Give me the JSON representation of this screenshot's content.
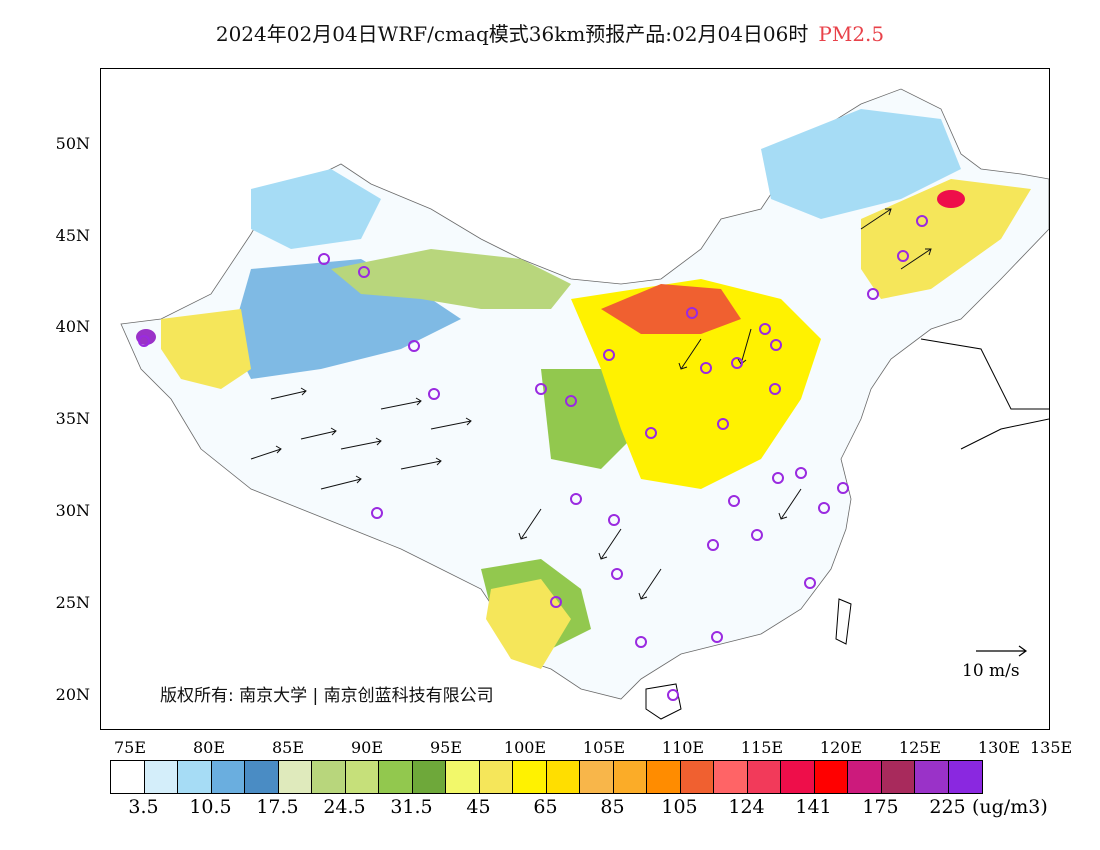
{
  "title": {
    "main": "2024年02月04日WRF/cmaq模式36km预报产品:02月04日06时",
    "variable": "PM2.5"
  },
  "axes": {
    "lat_labels": [
      "50N",
      "45N",
      "40N",
      "35N",
      "30N",
      "25N",
      "20N"
    ],
    "lon_labels": [
      "75E",
      "80E",
      "85E",
      "90E",
      "95E",
      "100E",
      "105E",
      "110E",
      "115E",
      "120E",
      "125E",
      "130E",
      "135E"
    ]
  },
  "colorbar": {
    "colors": [
      "#ffffff",
      "#d4eefa",
      "#a6dcf5",
      "#6aaedf",
      "#4a8cc4",
      "#dfeabc",
      "#b8d67c",
      "#c6e07a",
      "#92c84e",
      "#6ea83a",
      "#f2f86a",
      "#f5e65a",
      "#fff200",
      "#ffde00",
      "#f8b64a",
      "#fbac28",
      "#ff8c00",
      "#f06030",
      "#ff6466",
      "#f23a5a",
      "#ee0e4a",
      "#ff0000",
      "#cc1a7c",
      "#a82a5c",
      "#9a32c8",
      "#8a28e0"
    ],
    "labels": [
      "3.5",
      "10.5",
      "17.5",
      "24.5",
      "31.5",
      "45",
      "65",
      "85",
      "105",
      "124",
      "141",
      "175",
      "225"
    ],
    "unit": "(ug/m3)"
  },
  "copyright": "版权所有: 南京大学 | 南京创蓝科技有限公司",
  "wind_scale_label": "10 m/s",
  "stations": [
    "st1",
    "st2",
    "st3",
    "st4",
    "st5",
    "st6",
    "st7",
    "st8",
    "st9",
    "st10",
    "st11",
    "st12",
    "st13",
    "st14",
    "st15",
    "st16",
    "st17",
    "st18",
    "st19",
    "st20",
    "st21",
    "st22",
    "st23",
    "st24",
    "st25",
    "st26",
    "st27",
    "st28",
    "st29",
    "st30",
    "st31",
    "st32",
    "st33",
    "st34"
  ]
}
